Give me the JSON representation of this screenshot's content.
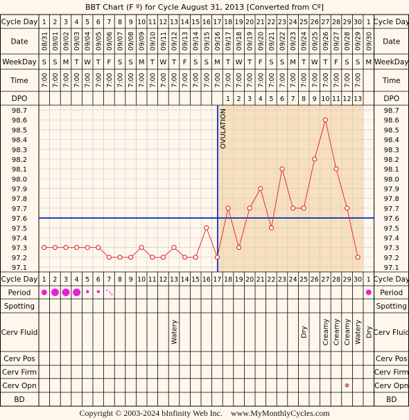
{
  "title": "BBT Chart (F º) for Cycle August 31, 2013  [Converted from Cº]",
  "row_labels": {
    "cycle_day": "Cycle Day",
    "date": "Date",
    "weekday": "WeekDay",
    "time": "Time",
    "dpo": "DPO",
    "period": "Period",
    "spotting": "Spotting",
    "cerv_fluid": "Cerv Fluid",
    "cerv_pos": "Cerv Pos",
    "cerv_firm": "Cerv Firm",
    "cerv_opn": "Cerv Opn",
    "bd": "BD"
  },
  "cycle_days": [
    "1",
    "2",
    "3",
    "4",
    "5",
    "6",
    "7",
    "8",
    "9",
    "10",
    "11",
    "12",
    "13",
    "14",
    "15",
    "16",
    "17",
    "18",
    "19",
    "20",
    "21",
    "22",
    "23",
    "24",
    "25",
    "26",
    "27",
    "28",
    "29",
    "30",
    "1"
  ],
  "dates": [
    "08/31",
    "09/01",
    "09/02",
    "09/03",
    "09/04",
    "09/05",
    "09/06",
    "09/07",
    "09/08",
    "09/09",
    "09/10",
    "09/11",
    "09/12",
    "09/13",
    "09/14",
    "09/15",
    "09/16",
    "09/17",
    "09/18",
    "09/19",
    "09/20",
    "09/21",
    "09/22",
    "09/23",
    "09/24",
    "09/25",
    "09/26",
    "09/27",
    "09/28",
    "09/29",
    "09/30"
  ],
  "weekdays": [
    "S",
    "S",
    "M",
    "T",
    "W",
    "T",
    "F",
    "S",
    "S",
    "M",
    "T",
    "W",
    "T",
    "F",
    "S",
    "S",
    "M",
    "T",
    "W",
    "T",
    "F",
    "S",
    "S",
    "M",
    "T",
    "W",
    "T",
    "F",
    "S",
    "S",
    "M"
  ],
  "times": [
    "7:00",
    "7:00",
    "7:00",
    "7:00",
    "7:00",
    "7:00",
    "7:00",
    "7:00",
    "7:00",
    "7:00",
    "7:00",
    "7:00",
    "7:00",
    "7:00",
    "7:00",
    "7:00",
    "7:00",
    "7:00",
    "7:00",
    "7:00",
    "7:00",
    "7:00",
    "7:00",
    "7:00",
    "7:00",
    "7:00",
    "7:00",
    "7:00",
    "7:00",
    "7:00",
    ""
  ],
  "dpo": [
    "",
    "",
    "",
    "",
    "",
    "",
    "",
    "",
    "",
    "",
    "",
    "",
    "",
    "",
    "",
    "",
    "",
    "1",
    "2",
    "3",
    "4",
    "5",
    "6",
    "7",
    "8",
    "9",
    "10",
    "11",
    "12",
    "13",
    ""
  ],
  "period": [
    "heavy",
    "heavy",
    "heavy",
    "heavy",
    "light",
    "light",
    "spotty",
    "",
    "",
    "",
    "",
    "",
    "",
    "",
    "",
    "",
    "",
    "",
    "",
    "",
    "",
    "",
    "",
    "",
    "",
    "",
    "",
    "",
    "",
    "",
    "heavy"
  ],
  "cerv_fluid": [
    "",
    "",
    "",
    "",
    "",
    "",
    "",
    "",
    "",
    "",
    "",
    "",
    "Watery",
    "",
    "",
    "",
    "",
    "",
    "",
    "",
    "",
    "",
    "",
    "",
    "Dry",
    "",
    "Creamy",
    "Creamy",
    "Creamy",
    "Watery",
    "Dry"
  ],
  "cerv_opn_days": [
    29
  ],
  "ovulation_label": "OVULATION",
  "copyright": "Copyright © 2003-2024 bInfinity Web Inc.    www.MyMonthlyCycles.com",
  "colors": {
    "background": "#fff7ec",
    "luteal_shade": "#f8e0bd",
    "line": "#e03030",
    "marker": "#e03030",
    "coverline": "#1030c8",
    "period": "#e820d8",
    "grid": "#cccccc",
    "cerv_opn": "#c87878"
  },
  "chart_data": {
    "type": "line",
    "title": "BBT Chart (F º) for Cycle August 31, 2013  [Converted from Cº]",
    "xlabel": "Cycle Day",
    "ylabel": "",
    "x": [
      1,
      2,
      3,
      4,
      5,
      6,
      7,
      8,
      9,
      10,
      11,
      12,
      13,
      14,
      15,
      16,
      17,
      18,
      19,
      20,
      21,
      22,
      23,
      24,
      25,
      26,
      27,
      28,
      29,
      30
    ],
    "series": [
      {
        "values": [
          97.3,
          97.3,
          97.3,
          97.3,
          97.3,
          97.3,
          97.2,
          97.2,
          97.2,
          97.3,
          97.2,
          97.2,
          97.3,
          97.2,
          97.2,
          97.5,
          97.2,
          97.7,
          97.3,
          97.7,
          97.9,
          97.5,
          98.1,
          97.7,
          97.7,
          98.2,
          98.6,
          98.1,
          97.7,
          97.2
        ]
      }
    ],
    "y_ticks": [
      "98.7",
      "98.6",
      "98.5",
      "98.4",
      "98.3",
      "98.2",
      "98.1",
      "98.0",
      "97.9",
      "97.8",
      "97.7",
      "97.6",
      "97.5",
      "97.4",
      "97.3",
      "97.2",
      "97.1"
    ],
    "ylim": [
      97.1,
      98.7
    ],
    "coverline": 97.6,
    "ovulation_day": 17,
    "grid": true
  }
}
